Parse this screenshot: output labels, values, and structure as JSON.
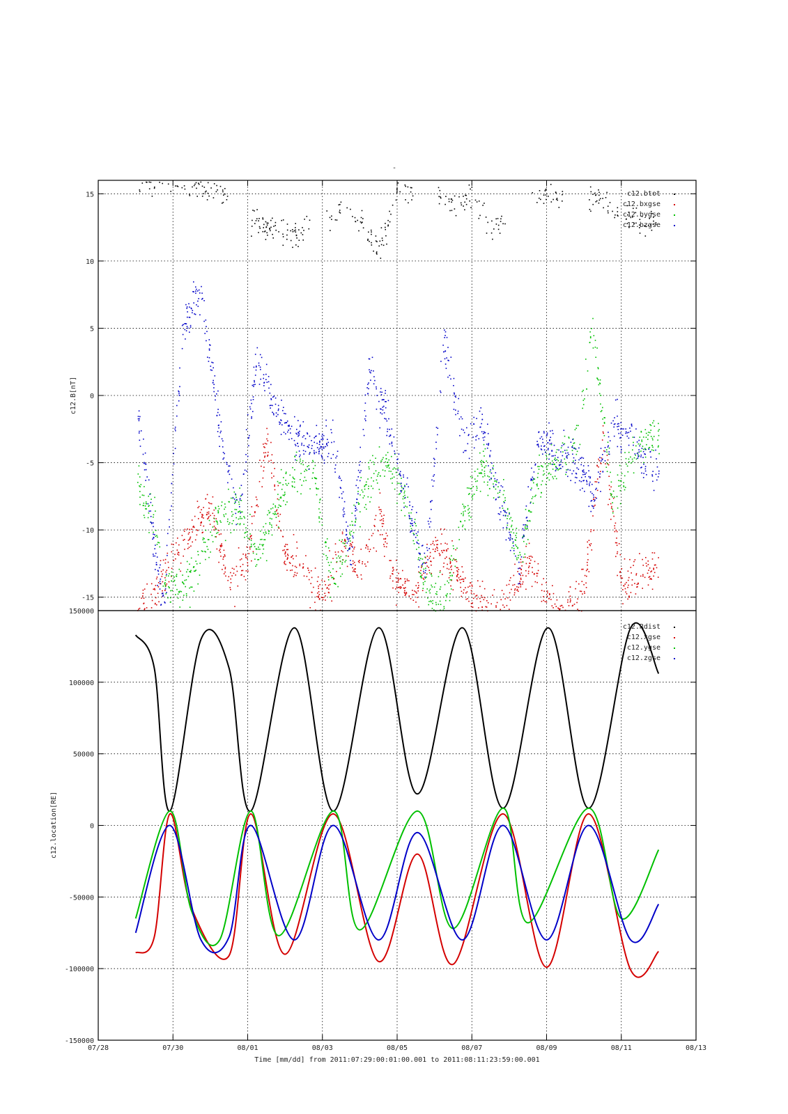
{
  "title": "-",
  "xlabel": "Time [mm/dd]  from 2011:07:29:00:01:00.001  to  2011:08:11:23:59:00.001",
  "x_tick_labels": [
    "07/28",
    "07/30",
    "08/01",
    "08/03",
    "08/05",
    "08/07",
    "08/09",
    "08/11",
    "08/13"
  ],
  "colors": {
    "black": "#000000",
    "red": "#d40000",
    "green": "#00c000",
    "blue": "#0000c8"
  },
  "chart_data": [
    {
      "type": "scatter",
      "title": "-",
      "ylabel": "c12.B[nT]",
      "xlim": [
        "07/28",
        "08/13"
      ],
      "ylim": [
        -16,
        16
      ],
      "y_ticks": [
        -15,
        -10,
        -5,
        0,
        5,
        10,
        15
      ],
      "grid": true,
      "legend_position": "top-right",
      "legend": [
        "c12.btot",
        "c12.bxgse",
        "c12.bygse",
        "c12.bzgse"
      ],
      "series": [
        {
          "name": "c12.btot",
          "color": "black",
          "x": [
            "07/29 12:00",
            "07/30 06:00",
            "07/31 01:00",
            "08/01 12:00",
            "08/02 06:00",
            "08/03 12:00",
            "08/04 02:00",
            "08/04 12:00",
            "08/05 00:00",
            "08/06 12:00",
            "08/07 00:00",
            "08/07 12:00",
            "08/09 00:00",
            "08/10 12:00",
            "08/11 12:00"
          ],
          "y": [
            15.8,
            15.5,
            15.2,
            12.5,
            12.0,
            14.0,
            13.0,
            10.5,
            15.5,
            14.5,
            15.0,
            12.5,
            15.0,
            14.5,
            13.0
          ]
        },
        {
          "name": "c12.bxgse",
          "color": "red",
          "x": [
            "07/29 00:00",
            "07/29 12:00",
            "07/30 00:00",
            "07/30 12:00",
            "07/31 00:00",
            "07/31 12:00",
            "08/01 00:00",
            "08/01 12:00",
            "08/02 00:00",
            "08/02 12:00",
            "08/03 00:00",
            "08/03 12:00",
            "08/04 00:00",
            "08/04 12:00",
            "08/05 00:00",
            "08/05 12:00",
            "08/06 00:00",
            "08/06 12:00",
            "08/07 00:00",
            "08/07 12:00",
            "08/08 00:00",
            "08/08 12:00",
            "08/09 00:00",
            "08/09 12:00",
            "08/10 00:00",
            "08/10 12:00",
            "08/11 00:00",
            "08/11 12:00"
          ],
          "y": [
            -16,
            -15,
            -12,
            -10,
            -8,
            -14,
            -12,
            -3,
            -12,
            -13,
            -15,
            -11,
            -13,
            -9,
            -14,
            -15,
            -11,
            -13,
            -15,
            -16,
            -15,
            -12,
            -15,
            -16,
            -14,
            -3,
            -14,
            -13
          ]
        },
        {
          "name": "c12.bygse",
          "color": "green",
          "x": [
            "07/29 00:00",
            "07/29 06:00",
            "07/29 12:00",
            "07/29 18:00",
            "07/30 06:00",
            "07/30 18:00",
            "07/31 06:00",
            "07/31 18:00",
            "08/01 06:00",
            "08/01 18:00",
            "08/02 06:00",
            "08/02 18:00",
            "08/03 06:00",
            "08/03 18:00",
            "08/04 06:00",
            "08/04 18:00",
            "08/05 06:00",
            "08/05 18:00",
            "08/06 06:00",
            "08/06 18:00",
            "08/07 06:00",
            "08/07 18:00",
            "08/08 06:00",
            "08/08 18:00",
            "08/09 06:00",
            "08/09 18:00",
            "08/10 06:00",
            "08/10 18:00",
            "08/11 06:00",
            "08/11 18:00"
          ],
          "y": [
            -6.5,
            -8.0,
            -9.0,
            -14.0,
            -14.5,
            -12.0,
            -9.0,
            -8.0,
            -12.0,
            -8.0,
            -5.5,
            -5.5,
            -14.0,
            -10.0,
            -6.0,
            -5.0,
            -8.0,
            -14.0,
            -15.5,
            -9.0,
            -5.0,
            -7.0,
            -12.0,
            -6.0,
            -5.0,
            -4.0,
            5.0,
            -8.0,
            -4.5,
            -3.0
          ]
        },
        {
          "name": "c12.bzgse",
          "color": "blue",
          "x": [
            "07/29 00:00",
            "07/29 06:00",
            "07/29 12:00",
            "07/29 18:00",
            "07/30 06:00",
            "07/30 18:00",
            "07/31 06:00",
            "07/31 18:00",
            "08/01 06:00",
            "08/01 18:00",
            "08/02 06:00",
            "08/02 18:00",
            "08/03 06:00",
            "08/03 18:00",
            "08/04 06:00",
            "08/04 18:00",
            "08/05 06:00",
            "08/05 18:00",
            "08/06 06:00",
            "08/06 18:00",
            "08/07 06:00",
            "08/07 18:00",
            "08/08 06:00",
            "08/08 18:00",
            "08/09 06:00",
            "08/09 18:00",
            "08/10 06:00",
            "08/10 18:00",
            "08/11 06:00",
            "08/11 18:00"
          ],
          "y": [
            -1.0,
            -5.0,
            -12.0,
            -15.5,
            5.0,
            8.0,
            -3.0,
            -9.0,
            3.0,
            -1.0,
            -3.0,
            -4.0,
            -3.0,
            -12.0,
            2.0,
            -2.0,
            -8.0,
            -13.0,
            4.0,
            -3.0,
            -2.0,
            -8.0,
            -13.0,
            -3.0,
            -4.0,
            -5.0,
            -7.5,
            -2.0,
            -3.0,
            -5.5
          ]
        }
      ]
    },
    {
      "type": "line",
      "title": "",
      "ylabel": "c12.location[RE]",
      "xlim": [
        "07/28",
        "08/13"
      ],
      "ylim": [
        -150000,
        150000
      ],
      "y_ticks": [
        -150000,
        -100000,
        -50000,
        0,
        50000,
        100000,
        150000
      ],
      "grid": true,
      "legend_position": "top-right",
      "legend": [
        "c12.Rdist",
        "c12.xgse",
        "c12.ygse",
        "c12.zgse"
      ],
      "orbit": {
        "start": "07/29 00:01",
        "end": "08/11 23:59",
        "perigee_times": [
          "07/29 22:00",
          "08/01 02:00",
          "08/03 07:00",
          "08/05 13:00",
          "08/07 20:00",
          "08/10 03:00"
        ],
        "period_hours": 54
      },
      "series": [
        {
          "name": "c12.Rdist",
          "color": "black",
          "x": [
            "07/29 00:01",
            "07/29 12:00",
            "07/29 22:00",
            "07/30 18:00",
            "07/31 12:00",
            "08/01 02:00",
            "08/02 06:00",
            "08/03 07:00",
            "08/04 12:00",
            "08/05 13:00",
            "08/06 18:00",
            "08/07 20:00",
            "08/09 01:00",
            "08/10 03:00",
            "08/11 06:00",
            "08/11 23:59"
          ],
          "y": [
            133000,
            110000,
            10000,
            130000,
            110000,
            10000,
            138000,
            10000,
            138000,
            22000,
            138000,
            12000,
            138000,
            12000,
            138000,
            106000
          ]
        },
        {
          "name": "c12.xgse",
          "color": "red",
          "x": [
            "07/29 00:01",
            "07/29 12:00",
            "07/29 22:00",
            "07/30 12:00",
            "07/31 12:00",
            "08/01 02:00",
            "08/02 00:00",
            "08/03 07:00",
            "08/04 12:00",
            "08/05 13:00",
            "08/06 12:00",
            "08/07 20:00",
            "08/09 00:00",
            "08/10 03:00",
            "08/11 06:00",
            "08/11 23:59"
          ],
          "y": [
            -89000,
            -78000,
            8000,
            -58000,
            -91000,
            8000,
            -90000,
            8000,
            -95000,
            -20000,
            -97000,
            8000,
            -99000,
            8000,
            -101000,
            -88000
          ]
        },
        {
          "name": "c12.ygse",
          "color": "green",
          "x": [
            "07/29 00:01",
            "07/29 22:00",
            "07/30 12:00",
            "07/31 06:00",
            "08/01 02:00",
            "08/01 20:00",
            "08/03 07:00",
            "08/04 00:00",
            "08/05 13:00",
            "08/06 12:00",
            "08/07 20:00",
            "08/08 12:00",
            "08/10 03:00",
            "08/11 00:00",
            "08/11 23:59"
          ],
          "y": [
            -65000,
            10000,
            -60000,
            -80000,
            10000,
            -77000,
            10000,
            -73000,
            10000,
            -72000,
            12000,
            -68000,
            12000,
            -65000,
            -17000
          ]
        },
        {
          "name": "c12.zgse",
          "color": "blue",
          "x": [
            "07/29 00:01",
            "07/29 22:00",
            "07/30 18:00",
            "07/31 12:00",
            "08/01 02:00",
            "08/02 06:00",
            "08/03 07:00",
            "08/04 12:00",
            "08/05 13:00",
            "08/06 18:00",
            "08/07 20:00",
            "08/09 00:00",
            "08/10 03:00",
            "08/11 06:00",
            "08/11 23:59"
          ],
          "y": [
            -75000,
            0,
            -80000,
            -78000,
            0,
            -80000,
            0,
            -80000,
            -5000,
            -80000,
            0,
            -80000,
            0,
            -80000,
            -55000
          ]
        }
      ]
    }
  ]
}
